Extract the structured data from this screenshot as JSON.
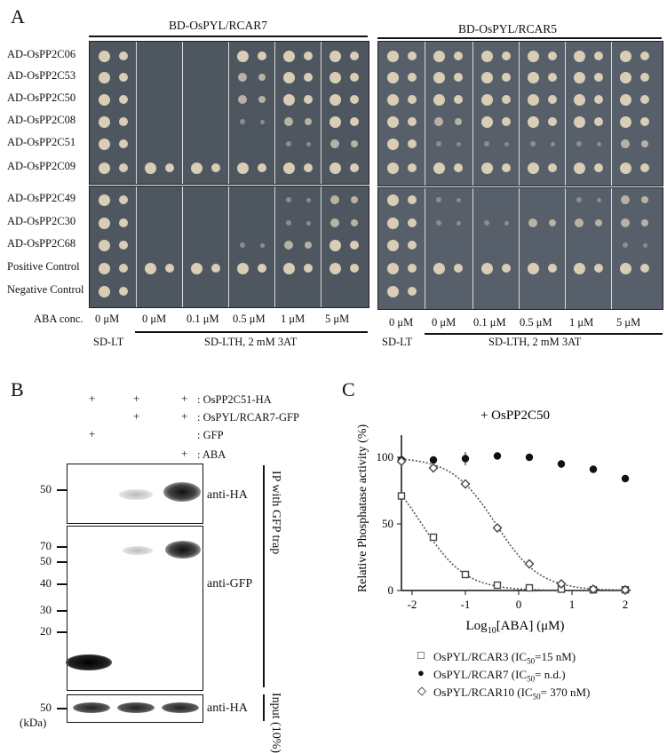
{
  "panel_a": {
    "letter": "A",
    "left_header": "BD-OsPYL/RCAR7",
    "right_header": "BD-OsPYL/RCAR5",
    "rows": [
      "AD-OsPP2C06",
      "AD-OsPP2C53",
      "AD-OsPP2C50",
      "AD-OsPP2C08",
      "AD-OsPP2C51",
      "AD-OsPP2C09",
      "AD-OsPP2C49",
      "AD-OsPP2C30",
      "AD-OsPP2C68",
      "Positive Control",
      "Negative Control"
    ],
    "aba_label": "ABA conc.",
    "concs": [
      "0 μM",
      "0 μM",
      "0.1 μM",
      "0.5 μM",
      "1 μM",
      "5 μM"
    ],
    "media_lt": "SD-LT",
    "media_lth": "SD-LTH, 2 mM 3AT"
  },
  "panel_b": {
    "letter": "B",
    "conditions": [
      {
        "label": ": OsPP2C51-HA",
        "marks": [
          "",
          "+",
          "+",
          "+"
        ]
      },
      {
        "label": ": OsPYL/RCAR7-GFP",
        "marks": [
          "",
          "",
          "+",
          "+"
        ]
      },
      {
        "label": ": GFP",
        "marks": [
          "",
          "+",
          "",
          ""
        ]
      },
      {
        "label": ": ABA",
        "marks": [
          "",
          "",
          "",
          "+"
        ]
      }
    ],
    "blot1_label": "anti-HA",
    "blot2_label": "anti-GFP",
    "blot3_label": "anti-HA",
    "ip_label": "IP with GFP trap",
    "input_label": "Input (10%)",
    "markers1": [
      "50"
    ],
    "markers2": [
      "70",
      "50",
      "40",
      "30",
      "20"
    ],
    "markers3": [
      "50"
    ],
    "kda": "(kDa)"
  },
  "panel_c": {
    "letter": "C",
    "chart_data": {
      "type": "scatter",
      "title": "+ OsPP2C50",
      "xlabel": "Log10[ABA] (μM)",
      "ylabel": "Relative Phosphatase activity (%)",
      "xlim": [
        -2.2,
        2.1
      ],
      "ylim": [
        0,
        110
      ],
      "xticks": [
        -2,
        -1,
        0,
        1,
        2
      ],
      "yticks": [
        0,
        50,
        100
      ],
      "series": [
        {
          "name": "OsPYL/RCAR3 (IC50=15 nM)",
          "marker": "square",
          "x": [
            -2.2,
            -1.6,
            -1.0,
            -0.4,
            0.2,
            0.8,
            1.4,
            2.0
          ],
          "y": [
            71,
            40,
            12,
            4,
            2,
            1,
            0.5,
            0.5
          ]
        },
        {
          "name": "OsPYL/RCAR7 (IC50= n.d.)",
          "marker": "circle",
          "x": [
            -2.2,
            -1.6,
            -1.0,
            -0.4,
            0.2,
            0.8,
            1.4,
            2.0
          ],
          "y": [
            98,
            98,
            99,
            101,
            100,
            95,
            91,
            84
          ]
        },
        {
          "name": "OsPYL/RCAR10 (IC50= 370 nM)",
          "marker": "diamond",
          "x": [
            -2.2,
            -1.6,
            -1.0,
            -0.4,
            0.2,
            0.8,
            1.4,
            2.0
          ],
          "y": [
            97,
            92,
            80,
            47,
            20,
            5,
            1,
            0.5
          ]
        }
      ]
    }
  }
}
